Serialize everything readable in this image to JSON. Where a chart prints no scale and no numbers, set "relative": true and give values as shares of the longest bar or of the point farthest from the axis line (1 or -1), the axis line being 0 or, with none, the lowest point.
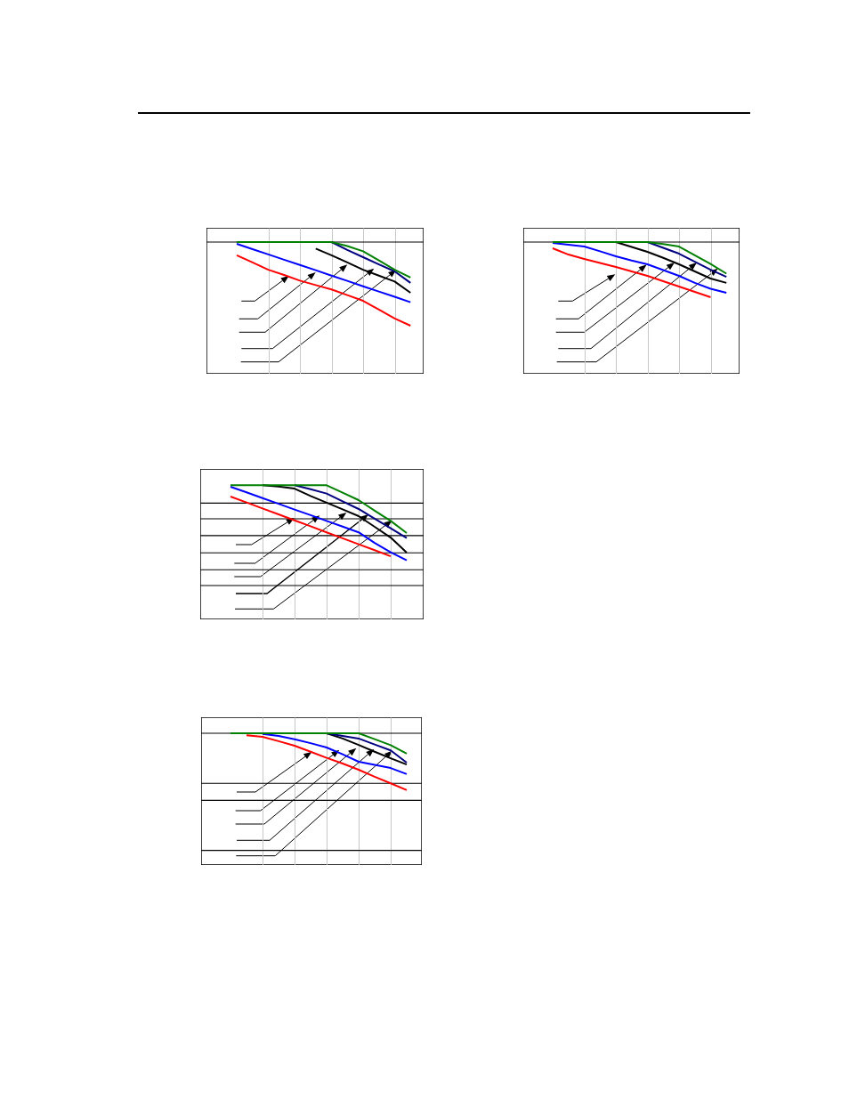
{
  "chart_data": [
    {
      "type": "line",
      "relative": true,
      "grid": "x",
      "categories": [
        null,
        null,
        null,
        null,
        null,
        null,
        null,
        null,
        null,
        null,
        null,
        null
      ],
      "series": [
        {
          "color": "#008000",
          "values": [
            1,
            1,
            1,
            1,
            1,
            1,
            1,
            0.97,
            0.93,
            0.86,
            0.79,
            0.73
          ]
        },
        {
          "color": "#000080",
          "values": [
            null,
            null,
            null,
            null,
            null,
            null,
            1,
            0.94,
            0.885,
            0.83,
            0.777,
            0.69
          ]
        },
        {
          "color": "#000000",
          "values": [
            null,
            null,
            null,
            null,
            null,
            0.95,
            0.9,
            0.845,
            0.79,
            0.745,
            0.7,
            0.615
          ]
        },
        {
          "color": "#0000ff",
          "values": [
            0.986,
            0.946,
            0.906,
            0.866,
            0.826,
            0.786,
            0.745,
            0.705,
            0.664,
            0.624,
            0.584,
            0.543
          ]
        },
        {
          "color": "#ff0000",
          "values": [
            0.899,
            0.845,
            0.79,
            0.75,
            0.707,
            0.673,
            0.64,
            0.597,
            0.554,
            0.487,
            0.42,
            0.365
          ]
        }
      ],
      "ref_lines": [
        {
          "axis": "y",
          "value": 1,
          "color": "#000000"
        }
      ]
    },
    {
      "type": "line",
      "relative": true,
      "grid": "x",
      "categories": [
        null,
        null,
        null,
        null,
        null,
        null,
        null,
        null,
        null,
        null,
        null,
        null
      ],
      "series": [
        {
          "color": "#008000",
          "values": [
            1,
            1,
            1,
            1,
            1,
            1,
            1,
            0.985,
            0.966,
            0.9,
            0.834,
            0.76
          ]
        },
        {
          "color": "#000080",
          "values": [
            null,
            null,
            null,
            null,
            null,
            null,
            1,
            0.956,
            0.912,
            0.85,
            0.79,
            0.736
          ]
        },
        {
          "color": "#000000",
          "values": [
            null,
            null,
            null,
            null,
            1,
            0.963,
            0.926,
            0.88,
            0.831,
            0.777,
            0.723,
            0.69
          ]
        },
        {
          "color": "#0000ff",
          "values": [
            0.993,
            0.98,
            0.966,
            0.93,
            0.892,
            0.86,
            0.831,
            0.787,
            0.743,
            0.69,
            0.645,
            0.615
          ]
        },
        {
          "color": "#ff0000",
          "values": [
            0.953,
            0.905,
            0.872,
            0.841,
            0.811,
            0.777,
            0.743,
            0.703,
            0.662,
            0.622,
            0.581,
            null
          ]
        }
      ],
      "ref_lines": [
        {
          "axis": "y",
          "value": 1,
          "color": "#000000"
        }
      ]
    },
    {
      "type": "line",
      "relative": true,
      "grid": "x",
      "categories": [
        null,
        null,
        null,
        null,
        null,
        null,
        null,
        null,
        null,
        null,
        null,
        null
      ],
      "series": [
        {
          "color": "#008000",
          "values": [
            1,
            1,
            1,
            1,
            1,
            1,
            1,
            0.945,
            0.889,
            0.81,
            0.734,
            0.644
          ]
        },
        {
          "color": "#000080",
          "values": [
            null,
            null,
            null,
            null,
            1,
            0.97,
            0.938,
            0.88,
            0.823,
            0.75,
            0.679,
            0.606
          ]
        },
        {
          "color": "#000000",
          "values": [
            null,
            null,
            1,
            0.99,
            0.975,
            0.92,
            0.87,
            0.82,
            0.77,
            0.69,
            0.61,
            0.498
          ]
        },
        {
          "color": "#0000ff",
          "values": [
            0.989,
            0.947,
            0.904,
            0.862,
            0.819,
            0.777,
            0.734,
            0.692,
            0.649,
            0.57,
            0.5,
            0.44
          ]
        },
        {
          "color": "#ff0000",
          "values": [
            0.916,
            0.872,
            0.827,
            0.783,
            0.738,
            0.694,
            0.649,
            0.605,
            0.56,
            0.516,
            0.47,
            null
          ]
        }
      ],
      "ref_lines": [
        {
          "axis": "y",
          "value": 0.867,
          "color": "#000000"
        },
        {
          "axis": "y",
          "value": 0.75,
          "color": "#000000"
        },
        {
          "axis": "y",
          "value": 0.624,
          "color": "#000000"
        },
        {
          "axis": "y",
          "value": 0.496,
          "color": "#000000"
        },
        {
          "axis": "y",
          "value": 0.37,
          "color": "#000000"
        },
        {
          "axis": "y",
          "value": 0.252,
          "color": "#000000"
        }
      ]
    },
    {
      "type": "line",
      "relative": true,
      "grid": "x",
      "categories": [
        null,
        null,
        null,
        null,
        null,
        null,
        null,
        null,
        null,
        null,
        null,
        null
      ],
      "series": [
        {
          "color": "#008000",
          "values": [
            1,
            1,
            1,
            1,
            1,
            1,
            1,
            1,
            1,
            0.955,
            0.91,
            0.845
          ]
        },
        {
          "color": "#000080",
          "values": [
            null,
            null,
            null,
            null,
            null,
            null,
            1,
            0.98,
            0.96,
            0.915,
            0.87,
            0.777
          ]
        },
        {
          "color": "#000000",
          "values": [
            null,
            null,
            null,
            null,
            null,
            null,
            1,
            0.96,
            0.911,
            0.86,
            0.81,
            0.763
          ]
        },
        {
          "color": "#0000ff",
          "values": [
            null,
            null,
            0.995,
            0.98,
            0.955,
            0.925,
            0.892,
            0.84,
            0.784,
            0.76,
            0.736,
            0.69
          ]
        },
        {
          "color": "#ff0000",
          "values": [
            null,
            0.985,
            0.973,
            0.94,
            0.905,
            0.86,
            0.813,
            0.77,
            0.723,
            0.67,
            0.62,
            0.568
          ]
        }
      ],
      "ref_lines": [
        {
          "axis": "y",
          "value": 1,
          "color": "#000000"
        },
        {
          "axis": "y",
          "value": 0.62,
          "color": "#000000"
        },
        {
          "axis": "y",
          "value": 0.491,
          "color": "#000000"
        },
        {
          "axis": "y",
          "value": 0.11,
          "color": "#000000"
        }
      ]
    }
  ]
}
